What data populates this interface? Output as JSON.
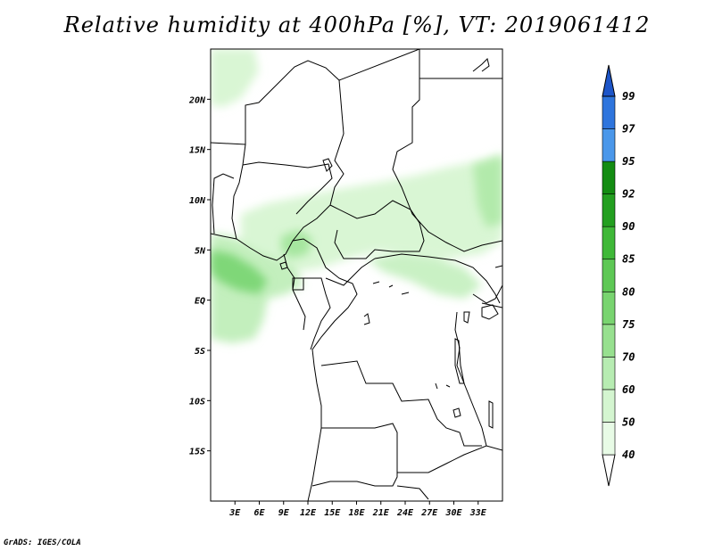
{
  "title": "Relative humidity at 400hPa [%], VT: 2019061412",
  "credit": "GrADS: IGES/COLA",
  "map": {
    "lon_range": [
      0,
      36
    ],
    "lat_range": [
      -20,
      25
    ],
    "lat_ticks": [
      {
        "value": 20,
        "label": "20N"
      },
      {
        "value": 15,
        "label": "15N"
      },
      {
        "value": 10,
        "label": "10N"
      },
      {
        "value": 5,
        "label": "5N"
      },
      {
        "value": 0,
        "label": "EQ"
      },
      {
        "value": -5,
        "label": "5S"
      },
      {
        "value": -10,
        "label": "10S"
      },
      {
        "value": -15,
        "label": "15S"
      }
    ],
    "lon_ticks": [
      {
        "value": 3,
        "label": "3E"
      },
      {
        "value": 6,
        "label": "6E"
      },
      {
        "value": 9,
        "label": "9E"
      },
      {
        "value": 12,
        "label": "12E"
      },
      {
        "value": 15,
        "label": "15E"
      },
      {
        "value": 18,
        "label": "18E"
      },
      {
        "value": 21,
        "label": "21E"
      },
      {
        "value": 24,
        "label": "24E"
      },
      {
        "value": 27,
        "label": "27E"
      },
      {
        "value": 30,
        "label": "30E"
      },
      {
        "value": 33,
        "label": "33E"
      }
    ]
  },
  "colorbar": {
    "levels": [
      "40",
      "50",
      "60",
      "70",
      "75",
      "80",
      "85",
      "90",
      "92",
      "95",
      "97",
      "99"
    ],
    "colors": [
      "#e8fbe6",
      "#d4f5d0",
      "#b7ecb2",
      "#97e08f",
      "#79d470",
      "#5ec855",
      "#3fb838",
      "#239f20",
      "#138c12",
      "#4a97ea",
      "#2e75dd",
      "#1d55c8"
    ],
    "low_arrow_color": "#ffffff",
    "high_arrow_color": "#1d55c8"
  }
}
